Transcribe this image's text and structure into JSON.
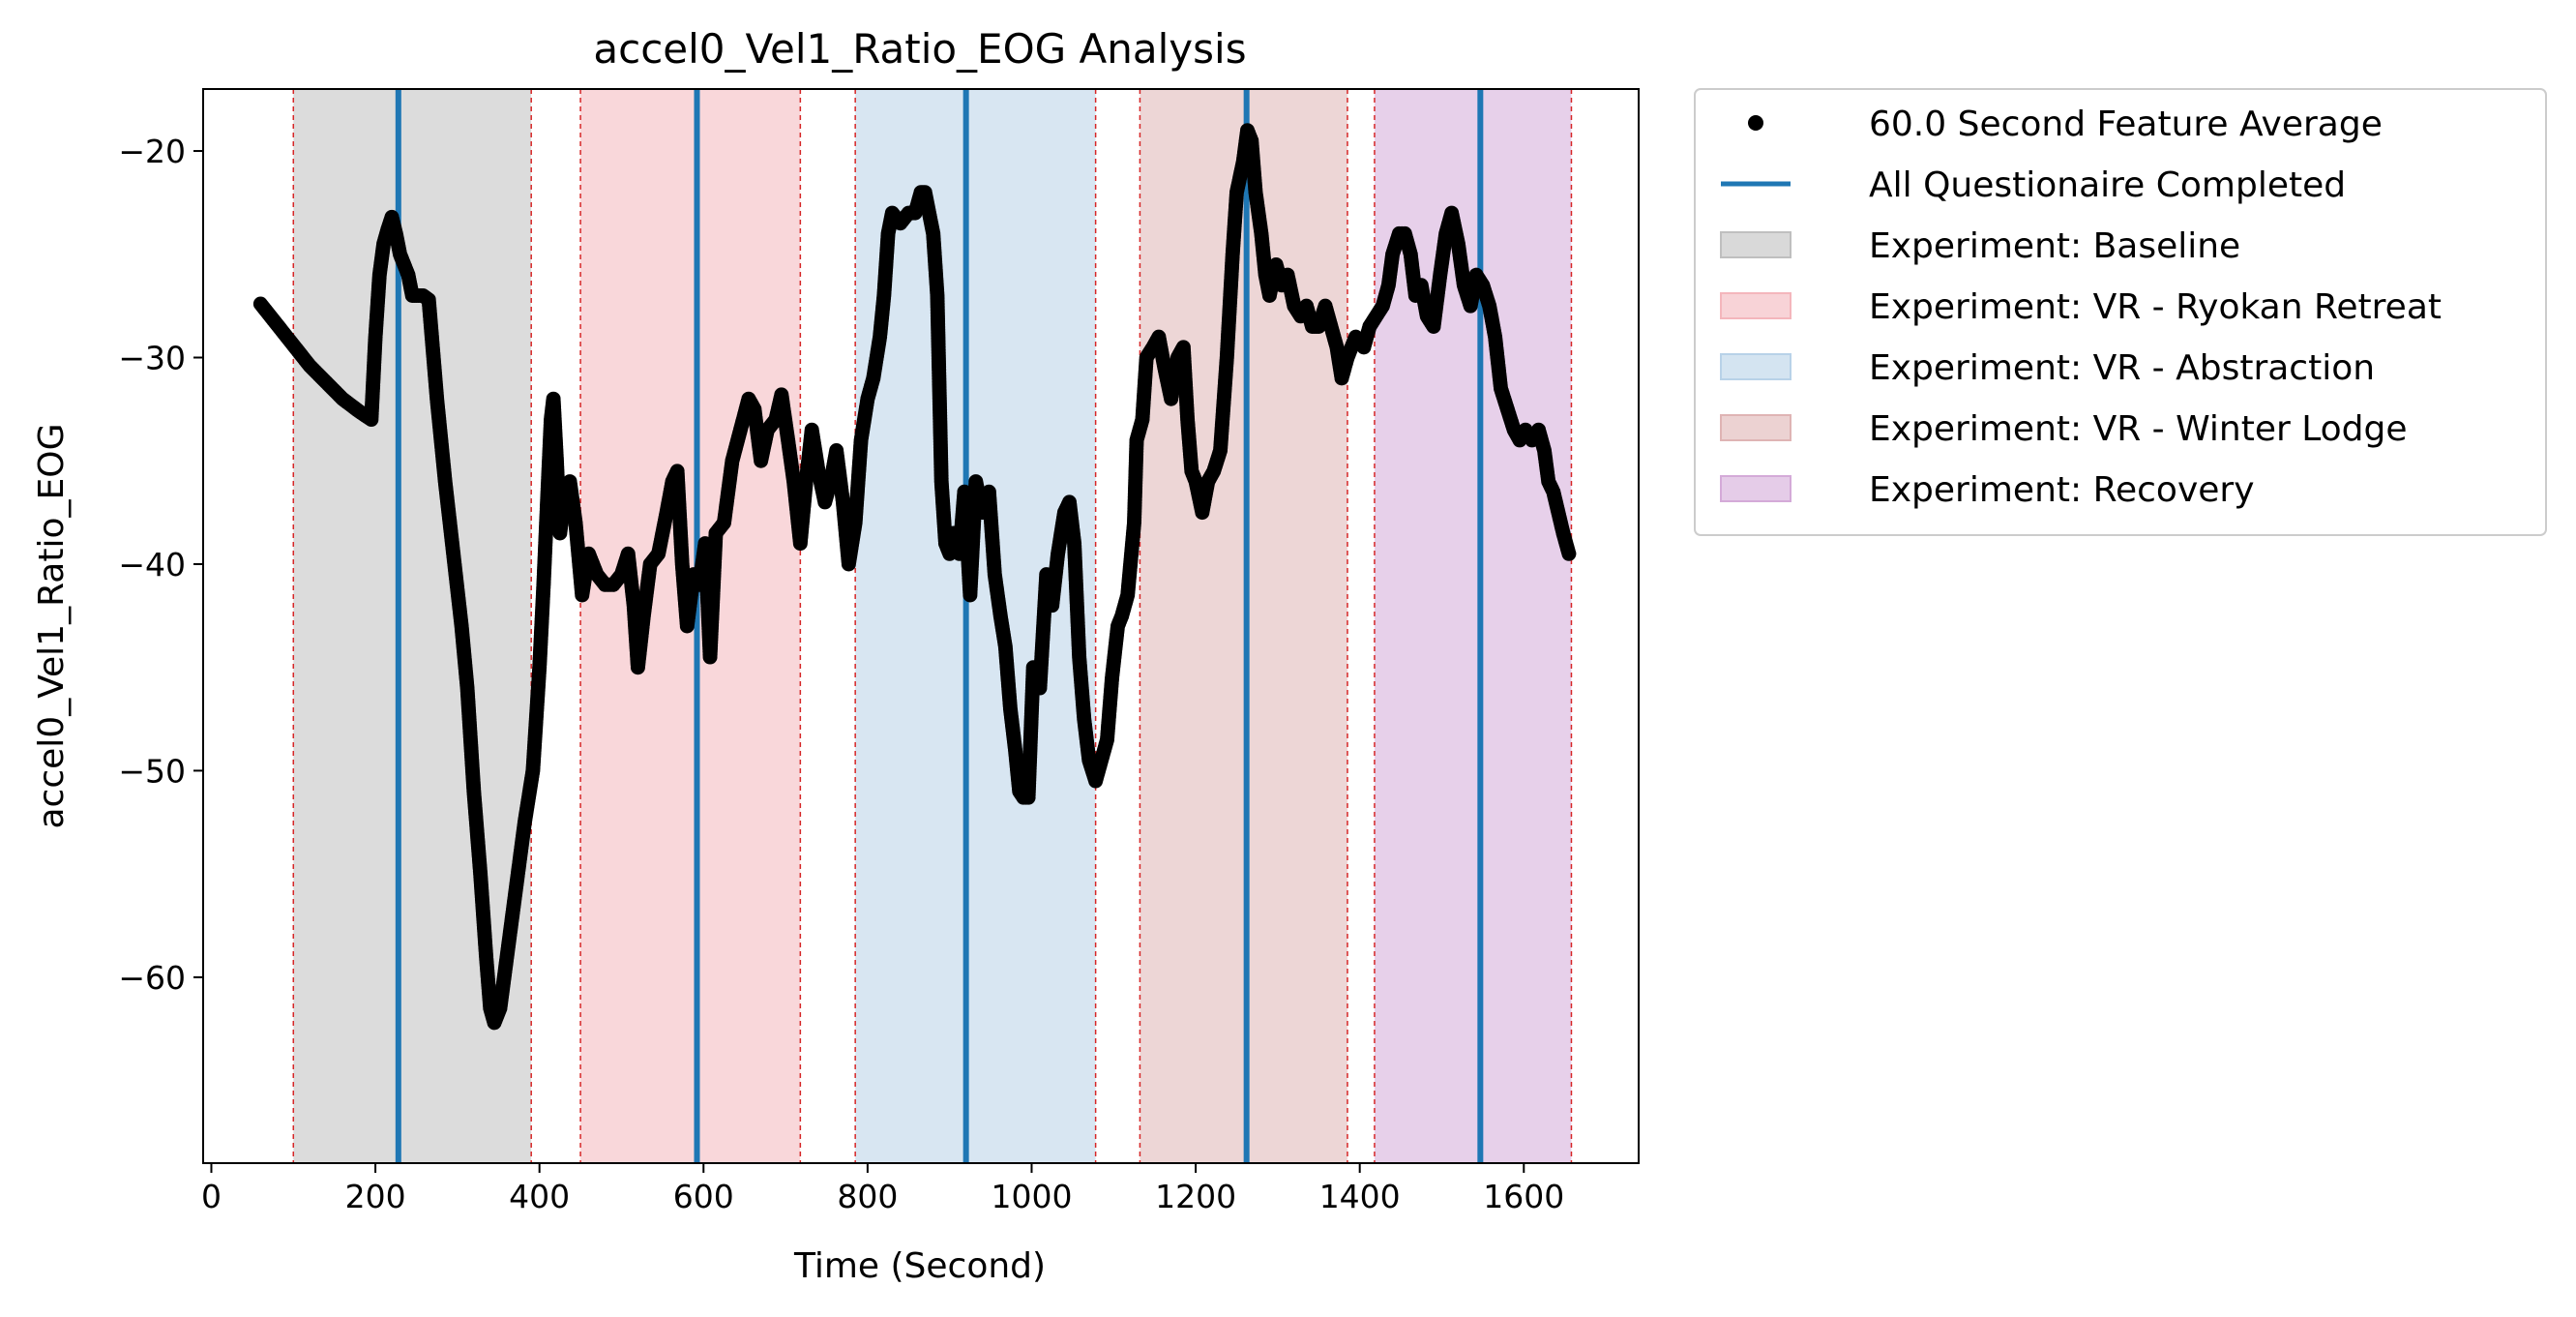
{
  "chart_data": {
    "type": "scatter",
    "title": "accel0_Vel1_Ratio_EOG Analysis",
    "xlabel": "Time (Second)",
    "ylabel": "accel0_Vel1_Ratio_EOG",
    "xlim": [
      -10,
      1740
    ],
    "ylim": [
      -69,
      -17
    ],
    "xticks": [
      0,
      200,
      400,
      600,
      800,
      1000,
      1200,
      1400,
      1600
    ],
    "xtick_labels": [
      "0",
      "200",
      "400",
      "600",
      "800",
      "1000",
      "1200",
      "1400",
      "1600"
    ],
    "yticks": [
      -20,
      -30,
      -40,
      -50,
      -60
    ],
    "ytick_labels": [
      "−20",
      "−30",
      "−40",
      "−50",
      "−60"
    ],
    "grid": false,
    "legend_position": "outside-top-right",
    "legend": [
      {
        "label": "60.0 Second Feature Average",
        "kind": "marker",
        "color": "#000000"
      },
      {
        "label": "All Questionaire Completed",
        "kind": "line",
        "color": "#1f77b4"
      },
      {
        "label": "Experiment: Baseline",
        "kind": "patch",
        "color": "#bfbfbf"
      },
      {
        "label": "Experiment: VR - Ryokan Retreat",
        "kind": "patch",
        "color": "#f4b6bc"
      },
      {
        "label": "Experiment: VR - Abstraction",
        "kind": "patch",
        "color": "#b8d2e8"
      },
      {
        "label": "Experiment: VR - Winter Lodge",
        "kind": "patch",
        "color": "#dfb4b4"
      },
      {
        "label": "Experiment: Recovery",
        "kind": "patch",
        "color": "#d4aad8"
      }
    ],
    "experiment_regions": [
      {
        "name": "Experiment: Baseline",
        "start": 100,
        "end": 390,
        "color": "#bfbfbf"
      },
      {
        "name": "Experiment: VR - Ryokan Retreat",
        "start": 450,
        "end": 718,
        "color": "#f4b6bc"
      },
      {
        "name": "Experiment: VR - Abstraction",
        "start": 785,
        "end": 1078,
        "color": "#b8d2e8"
      },
      {
        "name": "Experiment: VR - Winter Lodge",
        "start": 1132,
        "end": 1385,
        "color": "#dfb4b4"
      },
      {
        "name": "Experiment: Recovery",
        "start": 1418,
        "end": 1658,
        "color": "#d4aad8"
      }
    ],
    "questionnaire_completed": [
      228,
      592,
      920,
      1262,
      1547
    ],
    "series": [
      {
        "name": "60.0 Second Feature Average",
        "color": "#000000",
        "points": [
          [
            60,
            -27.4
          ],
          [
            80,
            -28.4
          ],
          [
            100,
            -29.4
          ],
          [
            120,
            -30.4
          ],
          [
            140,
            -31.2
          ],
          [
            160,
            -32.0
          ],
          [
            180,
            -32.6
          ],
          [
            195,
            -33.0
          ],
          [
            200,
            -29.0
          ],
          [
            205,
            -26.0
          ],
          [
            210,
            -24.5
          ],
          [
            215,
            -23.8
          ],
          [
            220,
            -23.2
          ],
          [
            225,
            -24.0
          ],
          [
            230,
            -25.0
          ],
          [
            235,
            -25.5
          ],
          [
            240,
            -26.0
          ],
          [
            245,
            -27.0
          ],
          [
            250,
            -27.0
          ],
          [
            258,
            -27.0
          ],
          [
            265,
            -27.2
          ],
          [
            275,
            -32.0
          ],
          [
            285,
            -36.0
          ],
          [
            295,
            -39.5
          ],
          [
            305,
            -43.0
          ],
          [
            312,
            -46.0
          ],
          [
            320,
            -51.0
          ],
          [
            328,
            -55.0
          ],
          [
            335,
            -59.0
          ],
          [
            340,
            -61.5
          ],
          [
            345,
            -62.2
          ],
          [
            352,
            -61.5
          ],
          [
            362,
            -58.5
          ],
          [
            372,
            -55.5
          ],
          [
            382,
            -52.5
          ],
          [
            392,
            -50.0
          ],
          [
            400,
            -45.0
          ],
          [
            405,
            -41.0
          ],
          [
            410,
            -36.5
          ],
          [
            414,
            -33.0
          ],
          [
            417,
            -32.0
          ],
          [
            421,
            -35.0
          ],
          [
            425,
            -38.5
          ],
          [
            430,
            -37.0
          ],
          [
            437,
            -36.0
          ],
          [
            444,
            -38.0
          ],
          [
            452,
            -41.5
          ],
          [
            460,
            -39.5
          ],
          [
            470,
            -40.5
          ],
          [
            480,
            -41.0
          ],
          [
            490,
            -41.0
          ],
          [
            500,
            -40.5
          ],
          [
            508,
            -39.5
          ],
          [
            515,
            -42.0
          ],
          [
            520,
            -45.0
          ],
          [
            527,
            -42.5
          ],
          [
            535,
            -40.0
          ],
          [
            545,
            -39.5
          ],
          [
            555,
            -37.5
          ],
          [
            562,
            -36.0
          ],
          [
            568,
            -35.5
          ],
          [
            574,
            -40.0
          ],
          [
            580,
            -43.0
          ],
          [
            588,
            -40.5
          ],
          [
            595,
            -41.0
          ],
          [
            602,
            -39.0
          ],
          [
            608,
            -44.5
          ],
          [
            615,
            -38.5
          ],
          [
            625,
            -38.0
          ],
          [
            635,
            -35.0
          ],
          [
            645,
            -33.5
          ],
          [
            655,
            -32.0
          ],
          [
            662,
            -32.5
          ],
          [
            670,
            -35.0
          ],
          [
            678,
            -33.5
          ],
          [
            688,
            -33.0
          ],
          [
            695,
            -31.8
          ],
          [
            703,
            -34.0
          ],
          [
            710,
            -36.0
          ],
          [
            718,
            -39.0
          ],
          [
            725,
            -36.0
          ],
          [
            732,
            -33.5
          ],
          [
            740,
            -35.5
          ],
          [
            748,
            -37.0
          ],
          [
            755,
            -36.0
          ],
          [
            762,
            -34.5
          ],
          [
            770,
            -37.0
          ],
          [
            777,
            -40.0
          ],
          [
            785,
            -38.0
          ],
          [
            792,
            -34.0
          ],
          [
            800,
            -32.0
          ],
          [
            807,
            -31.0
          ],
          [
            815,
            -29.0
          ],
          [
            820,
            -27.0
          ],
          [
            825,
            -24.0
          ],
          [
            830,
            -23.0
          ],
          [
            840,
            -23.5
          ],
          [
            850,
            -23.0
          ],
          [
            858,
            -23.0
          ],
          [
            865,
            -22.0
          ],
          [
            870,
            -22.0
          ],
          [
            875,
            -23.0
          ],
          [
            880,
            -24.0
          ],
          [
            885,
            -27.0
          ],
          [
            890,
            -36.0
          ],
          [
            895,
            -39.0
          ],
          [
            900,
            -39.5
          ],
          [
            905,
            -38.5
          ],
          [
            912,
            -39.5
          ],
          [
            918,
            -36.5
          ],
          [
            925,
            -41.5
          ],
          [
            932,
            -36.0
          ],
          [
            940,
            -37.5
          ],
          [
            948,
            -36.5
          ],
          [
            955,
            -40.5
          ],
          [
            962,
            -42.5
          ],
          [
            968,
            -44.0
          ],
          [
            974,
            -47.0
          ],
          [
            980,
            -49.0
          ],
          [
            985,
            -51.0
          ],
          [
            990,
            -51.3
          ],
          [
            996,
            -51.3
          ],
          [
            1002,
            -45.0
          ],
          [
            1010,
            -46.0
          ],
          [
            1018,
            -40.5
          ],
          [
            1025,
            -42.0
          ],
          [
            1032,
            -39.5
          ],
          [
            1040,
            -37.5
          ],
          [
            1046,
            -37.0
          ],
          [
            1052,
            -39.0
          ],
          [
            1058,
            -44.5
          ],
          [
            1064,
            -47.5
          ],
          [
            1070,
            -49.5
          ],
          [
            1078,
            -50.5
          ],
          [
            1085,
            -49.5
          ],
          [
            1092,
            -48.5
          ],
          [
            1098,
            -45.5
          ],
          [
            1105,
            -43.0
          ],
          [
            1110,
            -42.5
          ],
          [
            1117,
            -41.5
          ],
          [
            1125,
            -38.0
          ],
          [
            1128,
            -34.0
          ],
          [
            1135,
            -33.0
          ],
          [
            1140,
            -30.0
          ],
          [
            1148,
            -29.5
          ],
          [
            1155,
            -29.0
          ],
          [
            1162,
            -30.5
          ],
          [
            1170,
            -32.0
          ],
          [
            1178,
            -30.0
          ],
          [
            1185,
            -29.5
          ],
          [
            1190,
            -33.0
          ],
          [
            1195,
            -35.5
          ],
          [
            1200,
            -36.0
          ],
          [
            1208,
            -37.5
          ],
          [
            1215,
            -36.0
          ],
          [
            1222,
            -35.5
          ],
          [
            1230,
            -34.5
          ],
          [
            1238,
            -30.0
          ],
          [
            1245,
            -25.0
          ],
          [
            1250,
            -22.0
          ],
          [
            1258,
            -20.5
          ],
          [
            1263,
            -19.0
          ],
          [
            1268,
            -19.5
          ],
          [
            1273,
            -22.0
          ],
          [
            1280,
            -24.0
          ],
          [
            1285,
            -26.0
          ],
          [
            1290,
            -27.0
          ],
          [
            1298,
            -25.5
          ],
          [
            1305,
            -26.5
          ],
          [
            1312,
            -26.0
          ],
          [
            1320,
            -27.5
          ],
          [
            1328,
            -28.0
          ],
          [
            1335,
            -27.5
          ],
          [
            1342,
            -28.5
          ],
          [
            1350,
            -28.5
          ],
          [
            1358,
            -27.5
          ],
          [
            1365,
            -28.5
          ],
          [
            1372,
            -29.5
          ],
          [
            1378,
            -31.0
          ],
          [
            1385,
            -30.0
          ],
          [
            1395,
            -29.0
          ],
          [
            1405,
            -29.5
          ],
          [
            1412,
            -28.5
          ],
          [
            1420,
            -28.0
          ],
          [
            1428,
            -27.5
          ],
          [
            1435,
            -26.5
          ],
          [
            1440,
            -25.0
          ],
          [
            1448,
            -24.0
          ],
          [
            1455,
            -24.0
          ],
          [
            1462,
            -25.0
          ],
          [
            1468,
            -27.0
          ],
          [
            1475,
            -26.5
          ],
          [
            1482,
            -28.0
          ],
          [
            1490,
            -28.5
          ],
          [
            1498,
            -26.0
          ],
          [
            1505,
            -24.0
          ],
          [
            1512,
            -23.0
          ],
          [
            1520,
            -24.5
          ],
          [
            1527,
            -26.5
          ],
          [
            1535,
            -27.5
          ],
          [
            1542,
            -26.0
          ],
          [
            1550,
            -26.5
          ],
          [
            1558,
            -27.5
          ],
          [
            1565,
            -29.0
          ],
          [
            1572,
            -31.5
          ],
          [
            1580,
            -32.5
          ],
          [
            1588,
            -33.5
          ],
          [
            1595,
            -34.0
          ],
          [
            1602,
            -33.5
          ],
          [
            1610,
            -34.0
          ],
          [
            1618,
            -33.5
          ],
          [
            1625,
            -34.5
          ],
          [
            1630,
            -36.0
          ],
          [
            1636,
            -36.5
          ],
          [
            1642,
            -37.5
          ],
          [
            1648,
            -38.5
          ],
          [
            1655,
            -39.5
          ]
        ]
      }
    ]
  }
}
